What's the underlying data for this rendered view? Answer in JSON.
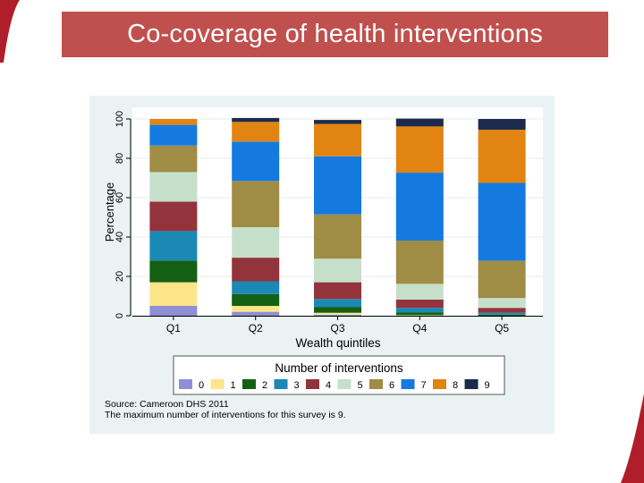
{
  "slide": {
    "title": "Co-coverage of health interventions",
    "accent_color": "#c0504d",
    "panel_color": "#eaf2f3"
  },
  "chart_data": {
    "type": "bar",
    "stacked": true,
    "title": "",
    "xlabel": "Wealth quintiles",
    "ylabel": "Percentage",
    "ylim": [
      0,
      100
    ],
    "yticks": [
      0,
      20,
      40,
      60,
      80,
      100
    ],
    "categories": [
      "Q1",
      "Q2",
      "Q3",
      "Q4",
      "Q5"
    ],
    "legend_title": "Number of interventions",
    "legend_position": "bottom",
    "series": [
      {
        "name": "0",
        "color": "#8e8fd6",
        "values": [
          5,
          2,
          0.5,
          0,
          0
        ]
      },
      {
        "name": "1",
        "color": "#fde689",
        "values": [
          12,
          3,
          1,
          0.3,
          0
        ]
      },
      {
        "name": "2",
        "color": "#146014",
        "values": [
          11,
          6,
          3,
          1.3,
          0.5
        ]
      },
      {
        "name": "3",
        "color": "#1b89b5",
        "values": [
          15,
          6.5,
          4,
          2.4,
          1
        ]
      },
      {
        "name": "4",
        "color": "#93343c",
        "values": [
          15,
          12,
          8.5,
          4.2,
          2.5
        ]
      },
      {
        "name": "5",
        "color": "#c6dfca",
        "values": [
          15,
          15.5,
          12,
          8,
          5
        ]
      },
      {
        "name": "6",
        "color": "#9f8c45",
        "values": [
          13.5,
          23.5,
          22.5,
          22,
          19
        ]
      },
      {
        "name": "7",
        "color": "#147ae0",
        "values": [
          10.5,
          20,
          29.5,
          34.5,
          39.5
        ]
      },
      {
        "name": "8",
        "color": "#e28412",
        "values": [
          3,
          10,
          16.5,
          23.5,
          27
        ]
      },
      {
        "name": "9",
        "color": "#1c2b4c",
        "values": [
          0,
          2,
          2,
          4,
          5.5
        ]
      }
    ],
    "notes": [
      "Source: Cameroon DHS 2011",
      "The maximum number of interventions for this survey is 9."
    ]
  }
}
